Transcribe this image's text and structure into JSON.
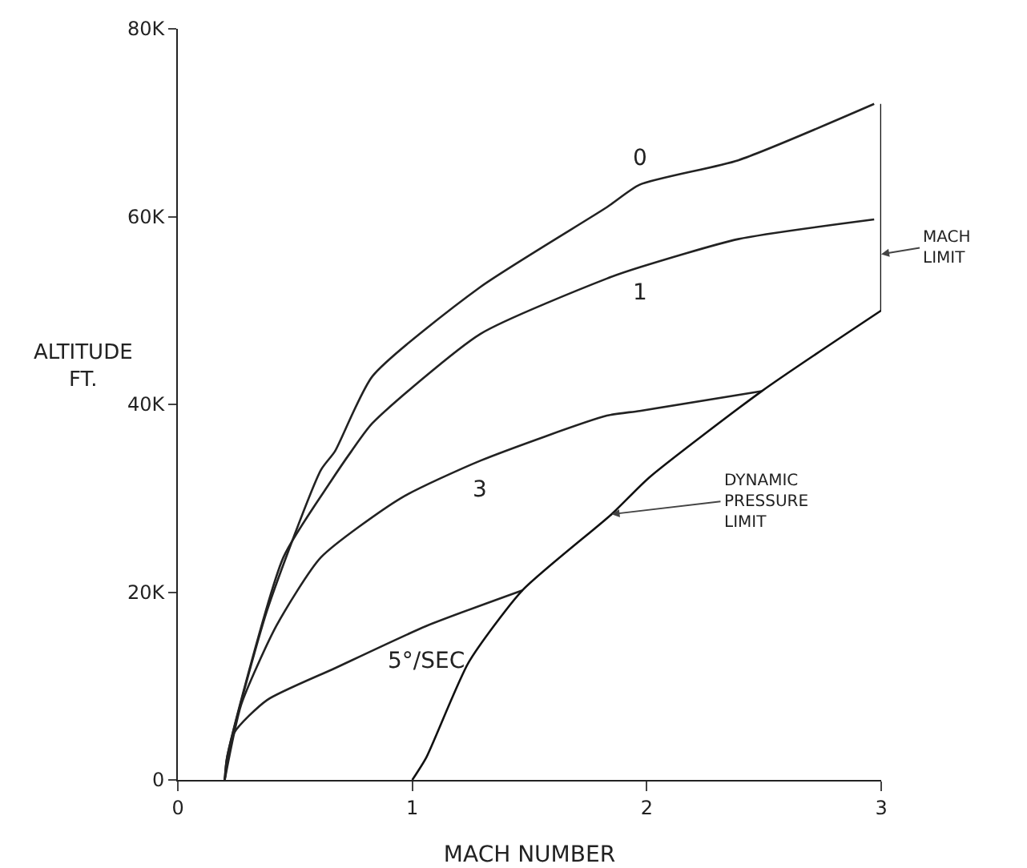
{
  "chart_data": {
    "type": "line",
    "xlabel": "MACH NUMBER",
    "ylabel": "ALTITUDE FT.",
    "xlim": [
      0,
      3
    ],
    "xticks": [
      0,
      1,
      2,
      3
    ],
    "ylim": [
      0,
      80000
    ],
    "yticks": [
      0,
      {
        "value": 20000,
        "label": "20K"
      },
      {
        "value": 40000,
        "label": "40K"
      },
      {
        "value": 60000,
        "label": "60K"
      },
      {
        "value": 80000,
        "label": "80K"
      }
    ],
    "grid": false,
    "legend": false,
    "marker": "none",
    "line_style": "solid",
    "series": [
      {
        "name": "0",
        "color": "#222222",
        "x": [
          0.2,
          0.21,
          0.38,
          0.61,
          0.67,
          0.83,
          1.29,
          1.83,
          1.97,
          2.39,
          2.97
        ],
        "values": [
          0,
          2400,
          18000,
          33000,
          35000,
          43000,
          52500,
          61000,
          63400,
          66000,
          72000
        ]
      },
      {
        "name": "1",
        "color": "#222222",
        "x": [
          0.2,
          0.21,
          0.45,
          0.65,
          0.74,
          0.83,
          1.29,
          1.83,
          1.97,
          2.39,
          2.97
        ],
        "values": [
          0,
          2400,
          23700,
          31700,
          35000,
          38000,
          47500,
          53400,
          54600,
          57600,
          59700
        ]
      },
      {
        "name": "3",
        "color": "#222222",
        "x": [
          0.2,
          0.27,
          0.42,
          0.61,
          0.95,
          1.29,
          1.83,
          1.97,
          2.49
        ],
        "values": [
          0,
          8000,
          16400,
          23700,
          30000,
          34000,
          38800,
          39300,
          41400
        ]
      },
      {
        "name": "5°/SEC",
        "color": "#222222",
        "x": [
          0.2,
          0.24,
          0.38,
          0.67,
          1.06,
          1.47
        ],
        "values": [
          0,
          5000,
          8500,
          11900,
          16400,
          20200
        ]
      },
      {
        "color": "#111111",
        "x": [
          1.0,
          1.06,
          1.24,
          1.47,
          1.85,
          2.01,
          2.49,
          3.0
        ],
        "values": [
          0,
          2400,
          12500,
          20200,
          28300,
          32200,
          41400,
          50000
        ]
      },
      {
        "color": "#111111",
        "x": [
          3,
          3
        ],
        "values": [
          50000,
          72000
        ]
      }
    ],
    "annotations": [
      {
        "text": "DYNAMIC PRESSURE LIMIT",
        "x": 1.85,
        "y": 28300
      },
      {
        "text": "MACH LIMIT",
        "x": 3,
        "y": 56000
      }
    ]
  }
}
